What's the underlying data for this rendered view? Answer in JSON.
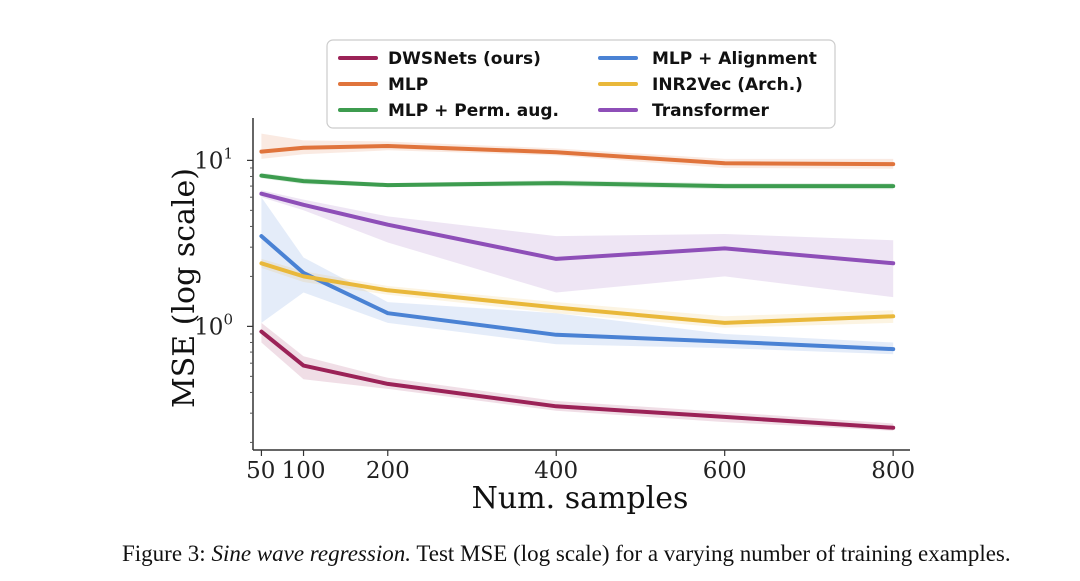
{
  "chart_data": {
    "type": "line",
    "xlabel": "Num. samples",
    "ylabel": "MSE (log scale)",
    "yscale": "log",
    "xlim": [
      40,
      820
    ],
    "ylim": [
      0.18,
      18
    ],
    "x": [
      50,
      100,
      200,
      400,
      600,
      800
    ],
    "xticks": [
      50,
      100,
      200,
      400,
      600,
      800
    ],
    "yticks": [
      {
        "value": 1,
        "base": "10",
        "exp": "0"
      },
      {
        "value": 10,
        "base": "10",
        "exp": "1"
      }
    ],
    "legend_position": "top-center",
    "series": [
      {
        "name": "DWSNets (ours)",
        "color": "#9b2257",
        "values": [
          0.93,
          0.58,
          0.45,
          0.33,
          0.285,
          0.245
        ],
        "lower": [
          0.8,
          0.48,
          0.42,
          0.31,
          0.265,
          0.235
        ],
        "upper": [
          1.05,
          0.66,
          0.49,
          0.355,
          0.305,
          0.26
        ]
      },
      {
        "name": "MLP",
        "color": "#e0743c",
        "values": [
          11.3,
          11.9,
          12.2,
          11.2,
          9.6,
          9.5
        ],
        "lower": [
          10.2,
          10.9,
          11.5,
          10.7,
          9.0,
          8.9
        ],
        "upper": [
          14.5,
          13.2,
          13.0,
          11.8,
          10.2,
          10.2
        ]
      },
      {
        "name": "MLP + Perm. aug.",
        "color": "#3d9c4f",
        "values": [
          8.1,
          7.5,
          7.1,
          7.3,
          7.0,
          7.0
        ],
        "lower": [
          7.8,
          7.2,
          6.9,
          7.0,
          6.7,
          6.7
        ],
        "upper": [
          8.4,
          7.8,
          7.3,
          7.6,
          7.3,
          7.3
        ]
      },
      {
        "name": "MLP + Alignment",
        "color": "#4a82d4",
        "values": [
          3.5,
          2.1,
          1.2,
          0.89,
          0.81,
          0.73
        ],
        "lower": [
          1.05,
          1.6,
          1.05,
          0.78,
          0.74,
          0.68
        ],
        "upper": [
          6.0,
          2.6,
          1.4,
          1.2,
          0.9,
          0.8
        ]
      },
      {
        "name": "INR2Vec (Arch.)",
        "color": "#e9b83a",
        "values": [
          2.4,
          2.0,
          1.65,
          1.3,
          1.05,
          1.15
        ],
        "lower": [
          2.25,
          1.85,
          1.55,
          1.2,
          0.98,
          1.05
        ],
        "upper": [
          2.55,
          2.15,
          1.75,
          1.4,
          1.15,
          1.25
        ]
      },
      {
        "name": "Transformer",
        "color": "#8e4fb8",
        "values": [
          6.3,
          5.4,
          4.1,
          2.55,
          2.95,
          2.4
        ],
        "lower": [
          6.0,
          5.0,
          3.2,
          1.6,
          2.0,
          1.5
        ],
        "upper": [
          6.6,
          5.8,
          4.6,
          3.5,
          3.6,
          3.3
        ]
      }
    ]
  },
  "caption": {
    "label": "Figure 3:",
    "title": "Sine wave regression.",
    "text": "Test MSE (log scale) for a varying number of training examples."
  }
}
